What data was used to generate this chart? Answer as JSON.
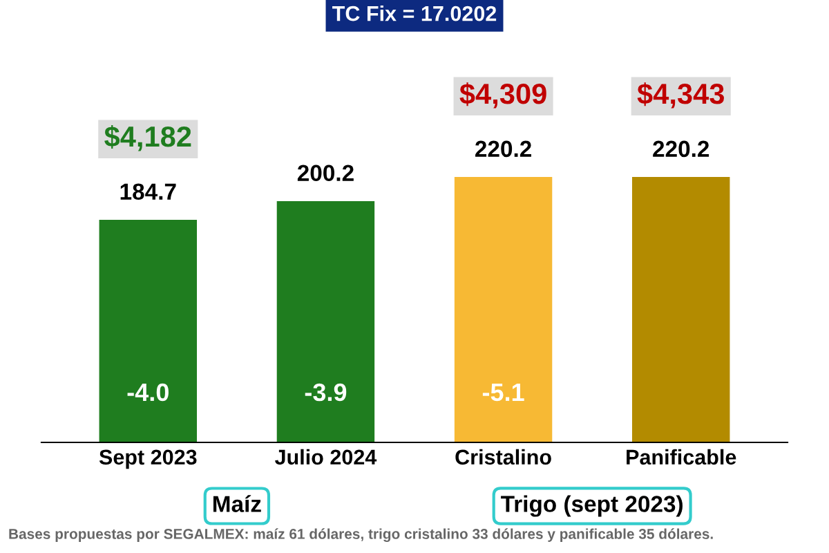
{
  "chart_data": {
    "type": "bar",
    "title": "TC Fix = 17.0202",
    "categories": [
      "Sept 2023",
      "Julio 2024",
      "Cristalino",
      "Panificable"
    ],
    "values": [
      184.7,
      200.2,
      220.2,
      220.2
    ],
    "colors": [
      "#1f7d1f",
      "#1f7d1f",
      "#f7b934",
      "#b38b00"
    ],
    "tick_labels": "x",
    "data_labels": true,
    "annotations": [
      "$4,182",
      "$4,309",
      "$4,343",
      "-4.0",
      "-3.9",
      "-5.1",
      "Maíz",
      "Trigo (sept 2023)",
      "Bases propuestas por SEGALMEX: maíz 61 dólares, trigo cristalino 33 dólares y panificable 35 dólares."
    ]
  }
}
